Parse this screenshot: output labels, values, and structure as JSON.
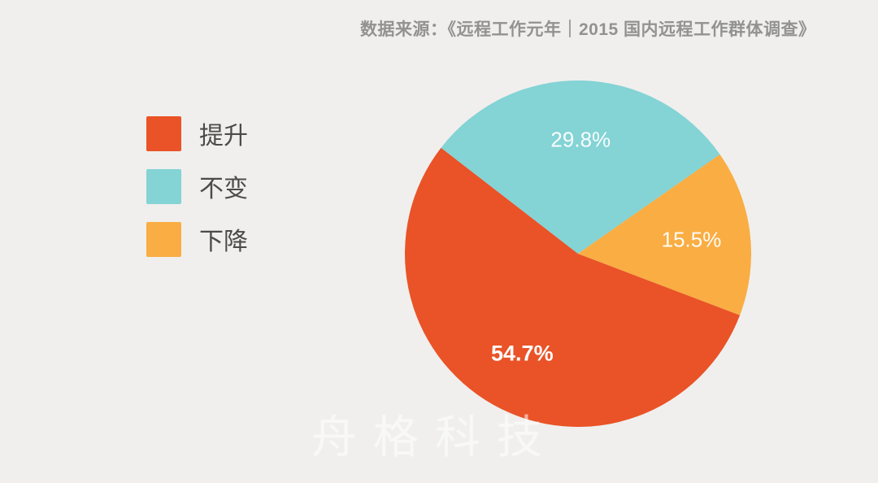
{
  "page": {
    "background_color": "#F0EFED"
  },
  "source_note": {
    "text": "数据来源：《远程工作元年｜2015 国内远程工作群体调查》",
    "color": "#929292"
  },
  "watermark": {
    "text": "舟格科技",
    "color": "rgba(255,255,255,0.55)"
  },
  "legend": {
    "text_color": "#4B4B4B",
    "position": "left"
  },
  "chart_data": {
    "type": "pie",
    "title": "",
    "series": [
      {
        "name": "提升",
        "value": 54.7,
        "label": "54.7%",
        "color": "#E95327",
        "label_bold": true
      },
      {
        "name": "不变",
        "value": 29.8,
        "label": "29.8%",
        "color": "#84D3D5",
        "label_bold": false
      },
      {
        "name": "下降",
        "value": 15.5,
        "label": "15.5%",
        "color": "#F9AD43",
        "label_bold": false
      }
    ],
    "unit": "%",
    "start_angle_deg": 110.8,
    "label_radius_ratio": 0.66,
    "label_color": "#FFFFFF",
    "legend_position": "left",
    "source": "《远程工作元年｜2015 国内远程工作群体调查》"
  }
}
